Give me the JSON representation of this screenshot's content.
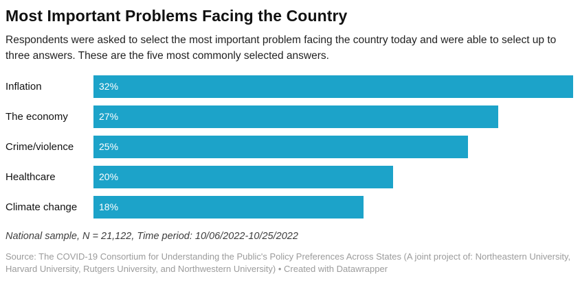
{
  "header": {
    "title": "Most Important Problems Facing the Country",
    "description": "Respondents were asked to select the most important problem facing the country today and were able to select up to three answers. These are the five most commonly selected answers."
  },
  "chart_data": {
    "type": "bar",
    "orientation": "horizontal",
    "categories": [
      "Inflation",
      "The economy",
      "Crime/violence",
      "Healthcare",
      "Climate change"
    ],
    "values": [
      32,
      27,
      25,
      20,
      18
    ],
    "value_labels": [
      "32%",
      "27%",
      "25%",
      "20%",
      "18%"
    ],
    "title": "Most Important Problems Facing the Country",
    "xlabel": "",
    "ylabel": "",
    "xlim": [
      0,
      32
    ],
    "grid": false,
    "legend": false,
    "bar_color": "#1CA3C9",
    "value_label_color": "#ffffff"
  },
  "footer": {
    "note": "National sample, N = 21,122, Time period: 10/06/2022-10/25/2022",
    "source": "Source: The COVID-19 Consortium for Understanding the Public's Policy Preferences Across States (A joint project of: Northeastern University, Harvard University, Rutgers University, and Northwestern University) • Created with Datawrapper"
  }
}
